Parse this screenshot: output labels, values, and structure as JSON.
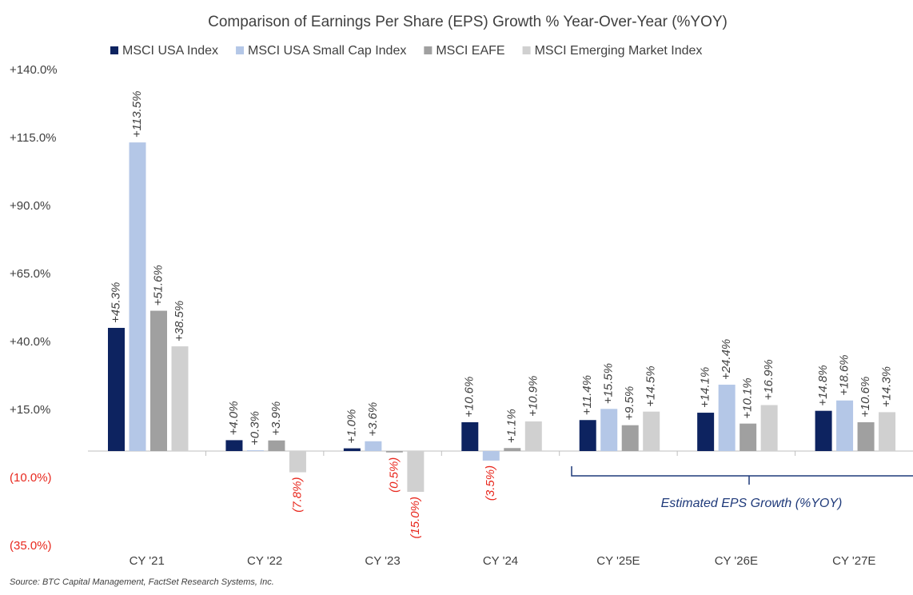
{
  "chart_data": {
    "type": "bar",
    "title": "Comparison of Earnings Per Share (EPS) Growth % Year-Over-Year (%YOY)",
    "categories": [
      "CY '21",
      "CY '22",
      "CY '23",
      "CY '24",
      "CY '25E",
      "CY '26E",
      "CY '27E"
    ],
    "series": [
      {
        "name": "MSCI USA Index",
        "color": "#0d2360",
        "values": [
          45.3,
          4.0,
          1.0,
          10.6,
          11.4,
          14.1,
          14.8
        ],
        "value_labels": [
          "+45.3%",
          "+4.0%",
          "+1.0%",
          "+10.6%",
          "+11.4%",
          "+14.1%",
          "+14.8%"
        ]
      },
      {
        "name": "MSCI USA Small Cap Index",
        "color": "#b4c7e7",
        "values": [
          113.5,
          0.3,
          3.6,
          -3.5,
          15.5,
          24.4,
          18.6
        ],
        "value_labels": [
          "+113.5%",
          "+0.3%",
          "+3.6%",
          "(3.5%)",
          "+15.5%",
          "+24.4%",
          "+18.6%"
        ]
      },
      {
        "name": "MSCI EAFE",
        "color": "#a0a0a0",
        "values": [
          51.6,
          3.9,
          -0.5,
          1.1,
          9.5,
          10.1,
          10.6
        ],
        "value_labels": [
          "+51.6%",
          "+3.9%",
          "(0.5%)",
          "+1.1%",
          "+9.5%",
          "+10.1%",
          "+10.6%"
        ]
      },
      {
        "name": "MSCI Emerging Market Index",
        "color": "#d0d0d0",
        "values": [
          38.5,
          -7.8,
          -15.0,
          10.9,
          14.5,
          16.9,
          14.3
        ],
        "value_labels": [
          "+38.5%",
          "(7.8%)",
          "(15.0%)",
          "+10.9%",
          "+14.5%",
          "+16.9%",
          "+14.3%"
        ]
      }
    ],
    "ylim": [
      -35,
      140
    ],
    "yticks": [
      {
        "value": -35,
        "label": "(35.0%)"
      },
      {
        "value": -10,
        "label": "(10.0%)"
      },
      {
        "value": 15,
        "label": "+15.0%"
      },
      {
        "value": 40,
        "label": "+40.0%"
      },
      {
        "value": 65,
        "label": "+65.0%"
      },
      {
        "value": 90,
        "label": "+90.0%"
      },
      {
        "value": 115,
        "label": "+115.0%"
      },
      {
        "value": 140,
        "label": "+140.0%"
      }
    ],
    "negative_color": "#e8281e",
    "annotation": "Estimated EPS Growth (%YOY)",
    "source": "Source: BTC Capital Management, FactSet Research Systems, Inc."
  }
}
